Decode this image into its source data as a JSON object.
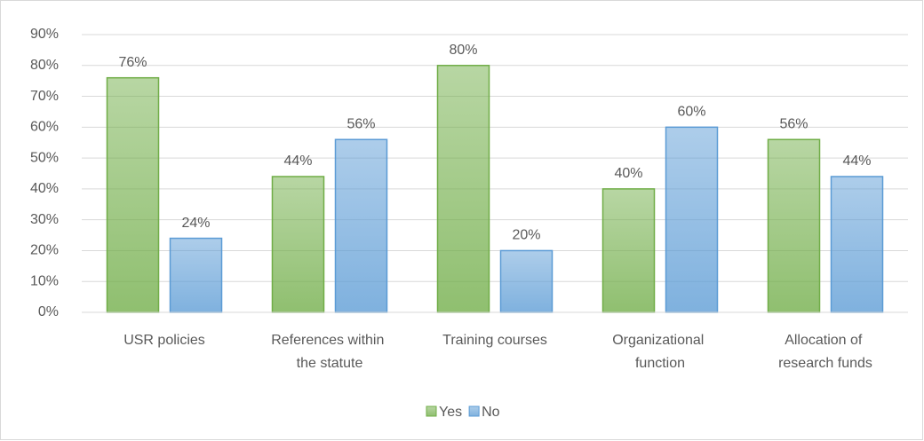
{
  "chart_data": {
    "type": "bar",
    "categories": [
      "USR policies",
      "References within the statute",
      "Training courses",
      "Organizational function",
      "Allocation of research funds"
    ],
    "series": [
      {
        "name": "Yes",
        "color": "#70ad47",
        "values": [
          76,
          44,
          80,
          40,
          56
        ],
        "value_labels": [
          "76%",
          "44%",
          "80%",
          "40%",
          "56%"
        ]
      },
      {
        "name": "No",
        "color": "#5b9bd5",
        "values": [
          24,
          56,
          20,
          60,
          44
        ],
        "value_labels": [
          "24%",
          "56%",
          "20%",
          "60%",
          "44%"
        ]
      }
    ],
    "ylim": [
      0,
      90
    ],
    "yticks": [
      {
        "value": 0,
        "label": "0%"
      },
      {
        "value": 10,
        "label": "10%"
      },
      {
        "value": 20,
        "label": "20%"
      },
      {
        "value": 30,
        "label": "30%"
      },
      {
        "value": 40,
        "label": "40%"
      },
      {
        "value": 50,
        "label": "50%"
      },
      {
        "value": 60,
        "label": "60%"
      },
      {
        "value": 70,
        "label": "70%"
      },
      {
        "value": 80,
        "label": "80%"
      },
      {
        "value": 90,
        "label": "90%"
      }
    ],
    "grid": true,
    "legend": "bottom"
  }
}
